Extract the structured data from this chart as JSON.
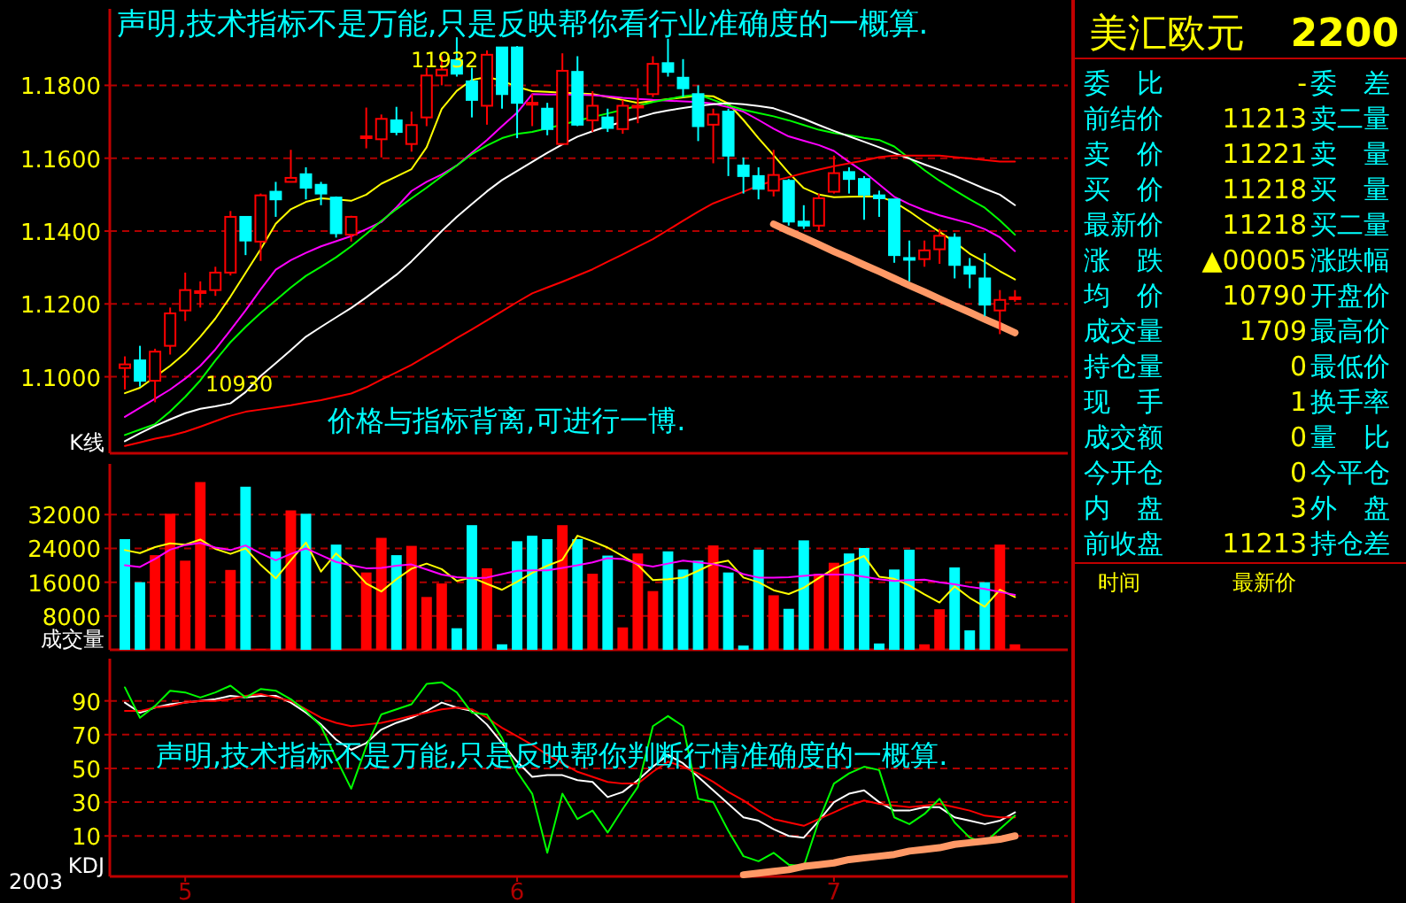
{
  "chart_data": [
    {
      "type": "candlestick",
      "title": "声明,技术指标不是万能,只是反映帮你看行业准确度的一概算.",
      "ylabel": "K线",
      "tick_labels": "y",
      "grid": "y",
      "ylim": [
        1.079,
        1.201
      ],
      "yticks": [
        {
          "value": 1.1,
          "label": "1.1000"
        },
        {
          "value": 1.12,
          "label": "1.1200"
        },
        {
          "value": 1.14,
          "label": "1.1400"
        },
        {
          "value": 1.16,
          "label": "1.1600"
        },
        {
          "value": 1.18,
          "label": "1.1800"
        }
      ],
      "categories": [
        null,
        null,
        null,
        null,
        null,
        null,
        null,
        null,
        null,
        null,
        null,
        null,
        null,
        null,
        null,
        null,
        null,
        null,
        null,
        null,
        null,
        null,
        null,
        null,
        null,
        null,
        null,
        null,
        null,
        null,
        null,
        null,
        null,
        null,
        null,
        null,
        null,
        null,
        null,
        null,
        null,
        null,
        null,
        null,
        null,
        null,
        null,
        null,
        null,
        null,
        null,
        null,
        null,
        null,
        null,
        null,
        null,
        null,
        null,
        null
      ],
      "ohlc": [
        [
          1.1024,
          1.1056,
          1.0965,
          1.1034
        ],
        [
          1.1045,
          1.1085,
          1.0973,
          1.0989
        ],
        [
          1.0989,
          1.1077,
          1.093,
          1.1069
        ],
        [
          1.1085,
          1.119,
          1.1061,
          1.1174
        ],
        [
          1.1182,
          1.1286,
          1.1153,
          1.1238
        ],
        [
          1.123,
          1.1262,
          1.119,
          1.1235
        ],
        [
          1.1238,
          1.1302,
          1.1222,
          1.1286
        ],
        [
          1.1286,
          1.1455,
          1.1278,
          1.1439
        ],
        [
          1.1439,
          1.1439,
          1.1334,
          1.1374
        ],
        [
          1.1371,
          1.1503,
          1.1318,
          1.1498
        ],
        [
          1.1508,
          1.1535,
          1.1439,
          1.1487
        ],
        [
          1.1535,
          1.1623,
          1.1535,
          1.1546
        ],
        [
          1.1556,
          1.1575,
          1.1487,
          1.1519
        ],
        [
          1.1527,
          1.1535,
          1.1471,
          1.1503
        ],
        [
          1.1492,
          1.1495,
          1.1382,
          1.1394
        ],
        [
          1.139,
          1.1442,
          1.1371,
          1.1439
        ],
        [
          1.1657,
          1.1739,
          1.1627,
          1.166
        ],
        [
          1.1652,
          1.172,
          1.1602,
          1.1708
        ],
        [
          1.1704,
          1.1741,
          1.1663,
          1.1672
        ],
        [
          1.1639,
          1.1728,
          1.1618,
          1.1691
        ],
        [
          1.1712,
          1.1848,
          1.1688,
          1.1827
        ],
        [
          1.1827,
          1.188,
          1.18,
          1.1843
        ],
        [
          1.1869,
          1.1932,
          1.1824,
          1.1832
        ],
        [
          1.1811,
          1.1848,
          1.1712,
          1.176
        ],
        [
          1.1744,
          1.1896,
          1.1692,
          1.1884
        ],
        [
          1.1904,
          1.1904,
          1.1736,
          1.1776
        ],
        [
          1.1904,
          1.1908,
          1.1655,
          1.1752
        ],
        [
          1.1747,
          1.1776,
          1.1688,
          1.1752
        ],
        [
          1.1736,
          1.1752,
          1.1663,
          1.168
        ],
        [
          1.1639,
          1.1888,
          1.1639,
          1.184
        ],
        [
          1.1837,
          1.188,
          1.1688,
          1.1692
        ],
        [
          1.1704,
          1.1784,
          1.1672,
          1.1744
        ],
        [
          1.1712,
          1.1736,
          1.1672,
          1.1683
        ],
        [
          1.168,
          1.176,
          1.1667,
          1.1744
        ],
        [
          1.1741,
          1.1792,
          1.1696,
          1.1744
        ],
        [
          1.1776,
          1.188,
          1.1768,
          1.1859
        ],
        [
          1.1861,
          1.1928,
          1.1824,
          1.1837
        ],
        [
          1.1821,
          1.1872,
          1.1768,
          1.1792
        ],
        [
          1.1776,
          1.18,
          1.1647,
          1.1688
        ],
        [
          1.1692,
          1.1736,
          1.1586,
          1.172
        ],
        [
          1.1728,
          1.1736,
          1.1551,
          1.1607
        ],
        [
          1.158,
          1.1602,
          1.1503,
          1.1551
        ],
        [
          1.1551,
          1.1575,
          1.1487,
          1.1516
        ],
        [
          1.1511,
          1.1623,
          1.1495,
          1.1554
        ],
        [
          1.1538,
          1.1543,
          1.1415,
          1.1426
        ],
        [
          1.1426,
          1.1471,
          1.1406,
          1.1415
        ],
        [
          1.1415,
          1.1503,
          1.1398,
          1.149
        ],
        [
          1.1508,
          1.1607,
          1.1503,
          1.1559
        ],
        [
          1.1562,
          1.1575,
          1.1503,
          1.1543
        ],
        [
          1.1543,
          1.1551,
          1.1431,
          1.15
        ],
        [
          1.1498,
          1.1511,
          1.1439,
          1.149
        ],
        [
          1.1487,
          1.1487,
          1.1313,
          1.1334
        ],
        [
          1.1326,
          1.1374,
          1.1262,
          1.1323
        ],
        [
          1.1323,
          1.1374,
          1.1302,
          1.1347
        ],
        [
          1.135,
          1.1406,
          1.131,
          1.1387
        ],
        [
          1.1382,
          1.1394,
          1.127,
          1.1307
        ],
        [
          1.1302,
          1.1326,
          1.1243,
          1.1283
        ],
        [
          1.127,
          1.1339,
          1.1166,
          1.1198
        ],
        [
          1.1182,
          1.1238,
          1.1117,
          1.1211
        ],
        [
          1.1214,
          1.1238,
          1.1206,
          1.1218
        ]
      ],
      "colors": [
        "#ff0000",
        "#00ffff",
        "#ff0000",
        "#ff0000",
        "#ff0000",
        "#ff0000",
        "#ff0000",
        "#ff0000",
        "#00ffff",
        "#ff0000",
        "#00ffff",
        "#ff0000",
        "#00ffff",
        "#00ffff",
        "#00ffff",
        "#ff0000",
        "#ff0000",
        "#ff0000",
        "#00ffff",
        "#ff0000",
        "#ff0000",
        "#ff0000",
        "#00ffff",
        "#00ffff",
        "#ff0000",
        "#00ffff",
        "#00ffff",
        "#ff0000",
        "#00ffff",
        "#ff0000",
        "#00ffff",
        "#ff0000",
        "#00ffff",
        "#ff0000",
        "#ff0000",
        "#ff0000",
        "#00ffff",
        "#00ffff",
        "#00ffff",
        "#ff0000",
        "#00ffff",
        "#00ffff",
        "#00ffff",
        "#ff0000",
        "#00ffff",
        "#00ffff",
        "#ff0000",
        "#ff0000",
        "#00ffff",
        "#00ffff",
        "#00ffff",
        "#00ffff",
        "#00ffff",
        "#ff0000",
        "#ff0000",
        "#00ffff",
        "#00ffff",
        "#00ffff",
        "#ff0000",
        "#ff0000"
      ],
      "series": [
        {
          "type": "line",
          "color": "#ffff00",
          "values": [
            1.0955,
            1.097,
            1.1,
            1.103,
            1.1065,
            1.111,
            1.116,
            1.122,
            1.1285,
            1.135,
            1.142,
            1.146,
            1.148,
            1.149,
            1.1487,
            1.1483,
            1.15,
            1.153,
            1.155,
            1.157,
            1.163,
            1.1735,
            1.1785,
            1.1815,
            1.1823,
            1.1813,
            1.1796,
            1.1784,
            1.1782,
            1.178,
            1.1778,
            1.1776,
            1.1768,
            1.176,
            1.1752,
            1.1757,
            1.1762,
            1.1767,
            1.1772,
            1.177,
            1.175,
            1.1705,
            1.1655,
            1.1608,
            1.156,
            1.1518,
            1.15,
            1.1493,
            1.1494,
            1.1495,
            1.1495,
            1.148,
            1.1454,
            1.1425,
            1.1398,
            1.137,
            1.1338,
            1.1315,
            1.129,
            1.1267
          ]
        },
        {
          "type": "line",
          "color": "#ff00ff",
          "values": [
            1.089,
            1.0915,
            1.094,
            1.0965,
            1.0995,
            1.103,
            1.1075,
            1.1128,
            1.1182,
            1.124,
            1.1294,
            1.132,
            1.134,
            1.1358,
            1.1372,
            1.1386,
            1.1405,
            1.1425,
            1.1465,
            1.151,
            1.1535,
            1.1555,
            1.158,
            1.1615,
            1.165,
            1.1688,
            1.1725,
            1.1776,
            1.1775,
            1.1775,
            1.1774,
            1.1773,
            1.177,
            1.1766,
            1.1763,
            1.176,
            1.1758,
            1.1756,
            1.1754,
            1.175,
            1.174,
            1.1728,
            1.1705,
            1.1681,
            1.166,
            1.1648,
            1.1636,
            1.162,
            1.159,
            1.1562,
            1.1528,
            1.1494,
            1.1474,
            1.1457,
            1.1443,
            1.1432,
            1.1421,
            1.1405,
            1.1383,
            1.1345
          ]
        },
        {
          "type": "line",
          "color": "#00ff00",
          "values": [
            1.084,
            1.0855,
            1.087,
            1.0905,
            1.0945,
            1.099,
            1.1045,
            1.1095,
            1.1137,
            1.1175,
            1.121,
            1.1245,
            1.1277,
            1.1302,
            1.1328,
            1.1358,
            1.1392,
            1.1428,
            1.146,
            1.149,
            1.1519,
            1.155,
            1.158,
            1.1611,
            1.1635,
            1.1655,
            1.1667,
            1.1672,
            1.1682,
            1.1692,
            1.1703,
            1.1713,
            1.1723,
            1.1733,
            1.1744,
            1.1754,
            1.1762,
            1.177,
            1.1775,
            1.176,
            1.1745,
            1.1733,
            1.1724,
            1.1715,
            1.1704,
            1.1691,
            1.1678,
            1.1669,
            1.1663,
            1.1656,
            1.165,
            1.1632,
            1.16,
            1.1567,
            1.1538,
            1.1512,
            1.1487,
            1.1464,
            1.1429,
            1.139
          ]
        },
        {
          "type": "line",
          "color": "#ffffff",
          "values": [
            1.0823,
            1.0845,
            1.0865,
            1.0883,
            1.09,
            1.0912,
            1.0919,
            1.0927,
            1.0958,
            1.1002,
            1.1037,
            1.1073,
            1.111,
            1.1137,
            1.1163,
            1.1189,
            1.1218,
            1.1249,
            1.128,
            1.1317,
            1.1358,
            1.14,
            1.1439,
            1.1474,
            1.1509,
            1.154,
            1.1565,
            1.159,
            1.1615,
            1.1638,
            1.1659,
            1.1674,
            1.1688,
            1.17,
            1.1711,
            1.1723,
            1.1731,
            1.1738,
            1.1744,
            1.1748,
            1.1751,
            1.1748,
            1.1743,
            1.1737,
            1.1723,
            1.1708,
            1.1691,
            1.1675,
            1.166,
            1.1645,
            1.163,
            1.1614,
            1.1599,
            1.1583,
            1.1568,
            1.1552,
            1.1534,
            1.1516,
            1.15,
            1.1471
          ]
        },
        {
          "type": "line",
          "color": "#ff0000",
          "values": [
            1.081,
            1.082,
            1.083,
            1.0838,
            1.0849,
            1.0863,
            1.0878,
            1.0893,
            1.0904,
            1.091,
            1.0916,
            1.0922,
            1.0929,
            1.0936,
            1.0945,
            1.0954,
            1.0971,
            1.0992,
            1.1012,
            1.1033,
            1.1057,
            1.1081,
            1.1106,
            1.113,
            1.1155,
            1.118,
            1.1205,
            1.1229,
            1.1245,
            1.1261,
            1.1278,
            1.1295,
            1.1316,
            1.1336,
            1.1357,
            1.1378,
            1.1403,
            1.1428,
            1.1453,
            1.1476,
            1.1492,
            1.1508,
            1.1525,
            1.1538,
            1.1548,
            1.1559,
            1.1569,
            1.1578,
            1.1586,
            1.1594,
            1.1603,
            1.1607,
            1.1607,
            1.1607,
            1.1607,
            1.1603,
            1.1599,
            1.1595,
            1.1591,
            1.1591
          ]
        },
        {
          "type": "line",
          "color": "#ff9966",
          "values": [
            null,
            null,
            null,
            null,
            null,
            null,
            null,
            null,
            null,
            null,
            null,
            null,
            null,
            null,
            null,
            null,
            null,
            null,
            null,
            null,
            null,
            null,
            null,
            null,
            null,
            null,
            null,
            null,
            null,
            null,
            null,
            null,
            null,
            null,
            null,
            null,
            null,
            null,
            null,
            null,
            null,
            null,
            null,
            1.1419,
            1.14,
            1.1382,
            1.1363,
            1.1344,
            1.1326,
            1.1307,
            1.1289,
            1.127,
            1.1251,
            1.1233,
            1.1214,
            1.1195,
            1.1177,
            1.1158,
            1.114,
            1.1121
          ]
        }
      ],
      "annotations": [
        "11932",
        "10930",
        "价格与指标背离,可进行一博."
      ]
    },
    {
      "type": "bar",
      "ylabel": "成交量",
      "tick_labels": "y",
      "grid": "y",
      "ylim": [
        0,
        44000
      ],
      "yticks": [
        8000,
        16000,
        24000,
        32000
      ],
      "categories": [
        null,
        null,
        null,
        null,
        null,
        null,
        null,
        null,
        null,
        null,
        null,
        null,
        null,
        null,
        null,
        null,
        null,
        null,
        null,
        null,
        null,
        null,
        null,
        null,
        null,
        null,
        null,
        null,
        null,
        null,
        null,
        null,
        null,
        null,
        null,
        null,
        null,
        null,
        null,
        null,
        null,
        null,
        null,
        null,
        null,
        null,
        null,
        null,
        null,
        null,
        null,
        null,
        null,
        null,
        null,
        null,
        null,
        null,
        null,
        null
      ],
      "values": [
        26200,
        16000,
        22400,
        32200,
        21100,
        39700,
        null,
        18900,
        38600,
        200,
        23300,
        33000,
        32200,
        null,
        24900,
        null,
        18300,
        26500,
        22400,
        24600,
        12500,
        15700,
        5100,
        29500,
        19300,
        1300,
        25700,
        27000,
        26200,
        29500,
        26200,
        18000,
        22300,
        5300,
        22800,
        13900,
        23300,
        19000,
        21100,
        24700,
        18300,
        1000,
        23700,
        12900,
        9700,
        25900,
        18000,
        20600,
        22800,
        24100,
        1500,
        19000,
        23700,
        1300,
        9600,
        19500,
        4600,
        16000,
        24900,
        1300
      ],
      "colors": [
        "#00ffff",
        "#00ffff",
        "#ff0000",
        "#ff0000",
        "#ff0000",
        "#ff0000",
        null,
        "#ff0000",
        "#00ffff",
        "#ff0000",
        "#00ffff",
        "#ff0000",
        "#00ffff",
        null,
        "#00ffff",
        null,
        "#ff0000",
        "#ff0000",
        "#00ffff",
        "#ff0000",
        "#ff0000",
        "#ff0000",
        "#00ffff",
        "#00ffff",
        "#ff0000",
        "#00ffff",
        "#00ffff",
        "#00ffff",
        "#00ffff",
        "#ff0000",
        "#00ffff",
        "#ff0000",
        "#00ffff",
        "#ff0000",
        "#ff0000",
        "#ff0000",
        "#00ffff",
        "#00ffff",
        "#00ffff",
        "#ff0000",
        "#00ffff",
        "#00ffff",
        "#00ffff",
        "#ff0000",
        "#00ffff",
        "#00ffff",
        "#ff0000",
        "#ff0000",
        "#00ffff",
        "#00ffff",
        "#00ffff",
        "#00ffff",
        "#00ffff",
        "#ff0000",
        "#ff0000",
        "#00ffff",
        "#00ffff",
        "#00ffff",
        "#ff0000",
        "#ff0000"
      ],
      "series": [
        {
          "type": "line",
          "color": "#ffff00",
          "values": [
            23600,
            22900,
            24300,
            25200,
            24900,
            26100,
            23900,
            22700,
            24000,
            20100,
            16900,
            21200,
            25400,
            18500,
            22800,
            19600,
            15700,
            13800,
            16700,
            19200,
            20400,
            19100,
            16300,
            17100,
            15600,
            14200,
            16100,
            18200,
            19900,
            21300,
            27000,
            25700,
            24200,
            22200,
            20100,
            16500,
            16700,
            17100,
            18700,
            20400,
            21100,
            17100,
            16000,
            14100,
            13200,
            14700,
            17000,
            19200,
            20700,
            22200,
            17300,
            16800,
            15200,
            13100,
            11200,
            15000,
            12300,
            10200,
            14200,
            12500
          ]
        },
        {
          "type": "line",
          "color": "#ff00ff",
          "values": [
            20000,
            19600,
            21500,
            23700,
            24800,
            25300,
            24200,
            23600,
            24700,
            22800,
            21200,
            22700,
            24000,
            22400,
            20800,
            20000,
            19300,
            19400,
            19900,
            20200,
            19000,
            17800,
            17200,
            16900,
            17100,
            17900,
            18700,
            18800,
            18800,
            19400,
            20000,
            20700,
            21700,
            21500,
            20300,
            19700,
            20400,
            21100,
            20700,
            20300,
            19500,
            17900,
            17100,
            17100,
            17200,
            17500,
            17800,
            17800,
            17800,
            17300,
            16700,
            16300,
            16500,
            16600,
            16000,
            15500,
            14900,
            14400,
            13700,
            13000
          ]
        }
      ]
    },
    {
      "type": "line",
      "ylabel": "KDJ",
      "grid": "y",
      "ylim": [
        -14,
        115
      ],
      "yticks": [
        10,
        30,
        50,
        70,
        90
      ],
      "categories": [
        null,
        null,
        null,
        null,
        "5",
        null,
        null,
        null,
        null,
        null,
        null,
        null,
        null,
        null,
        null,
        null,
        null,
        null,
        null,
        null,
        null,
        null,
        null,
        null,
        null,
        null,
        "6",
        null,
        null,
        null,
        null,
        null,
        null,
        null,
        null,
        null,
        null,
        null,
        null,
        null,
        null,
        null,
        null,
        null,
        null,
        null,
        null,
        "7",
        null,
        null,
        null,
        null,
        null,
        null,
        null,
        null,
        null,
        null,
        null,
        null
      ],
      "series": [
        {
          "color": "#ffffff",
          "values": [
            89,
            83,
            86,
            88,
            89,
            90,
            91,
            93,
            92,
            93,
            93,
            89,
            83,
            76,
            67,
            61,
            65,
            73,
            77,
            80,
            84,
            89,
            86,
            84,
            76,
            65,
            54,
            45,
            46,
            46,
            43,
            42,
            33,
            36,
            43,
            51,
            58,
            53,
            45,
            37,
            29,
            21,
            19,
            14,
            10,
            9,
            19,
            30,
            35,
            37,
            30,
            25,
            25,
            27,
            27,
            21,
            19,
            17,
            19,
            24
          ]
        },
        {
          "color": "#ff0000",
          "values": [
            84,
            84,
            86,
            87,
            89,
            90,
            90,
            91,
            93,
            94,
            92,
            90,
            85,
            80,
            77,
            75,
            76,
            77,
            79,
            81,
            83,
            85,
            86,
            85,
            80,
            74,
            69,
            64,
            58,
            53,
            48,
            45,
            42,
            41,
            41,
            48,
            54,
            51,
            47,
            42,
            36,
            31,
            25,
            20,
            18,
            16,
            20,
            24,
            28,
            31,
            29,
            28,
            27,
            28,
            29,
            27,
            25,
            22,
            21,
            21
          ]
        },
        {
          "color": "#00ff00",
          "values": [
            98,
            80,
            87,
            96,
            95,
            92,
            95,
            99,
            92,
            97,
            96,
            91,
            84,
            75,
            56,
            38,
            63,
            82,
            85,
            88,
            100,
            101,
            95,
            83,
            82,
            68,
            48,
            35,
            0,
            35,
            20,
            25,
            12,
            26,
            39,
            75,
            81,
            75,
            32,
            30,
            13,
            -2,
            -5,
            0,
            -7,
            -8,
            19,
            41,
            47,
            51,
            49,
            21,
            17,
            23,
            32,
            18,
            9,
            6,
            14,
            22
          ]
        },
        {
          "color": "#ff9966",
          "values": [
            null,
            null,
            null,
            null,
            null,
            null,
            null,
            null,
            null,
            null,
            null,
            null,
            null,
            null,
            null,
            null,
            null,
            null,
            null,
            null,
            null,
            null,
            null,
            null,
            null,
            null,
            null,
            null,
            null,
            null,
            null,
            null,
            null,
            null,
            null,
            null,
            null,
            null,
            null,
            null,
            null,
            -13,
            -12,
            -11,
            -10,
            -8,
            -7,
            -6,
            -4,
            -3,
            -2,
            -1,
            1,
            2,
            3,
            5,
            6,
            7,
            8,
            10
          ]
        }
      ],
      "annotations": [
        "2003",
        "声明,技术指标不是万能,只是反映帮你判断行情准确度的一概算."
      ]
    },
    {
      "type": "other",
      "title": "美汇欧元",
      "subtitle": "2200",
      "annotations": [
        "委　比",
        "-",
        "委　差",
        "前结价",
        "11213",
        "卖二量",
        "卖　价",
        "11221",
        "卖　量",
        "买　价",
        "11218",
        "买　量",
        "最新价",
        "11218",
        "买二量",
        "涨　跌",
        "▲00005",
        "涨跌幅",
        "均　价",
        "10790",
        "开盘价",
        "成交量",
        "1709",
        "最高价",
        "持仓量",
        "0",
        "最低价",
        "现　手",
        "1",
        "换手率",
        "成交额",
        "0",
        "量　比",
        "今开仓",
        "0",
        "今平仓",
        "内　盘",
        "3",
        "外　盘",
        "前收盘",
        "11213",
        "持仓差",
        "时间",
        "最新价"
      ]
    }
  ]
}
